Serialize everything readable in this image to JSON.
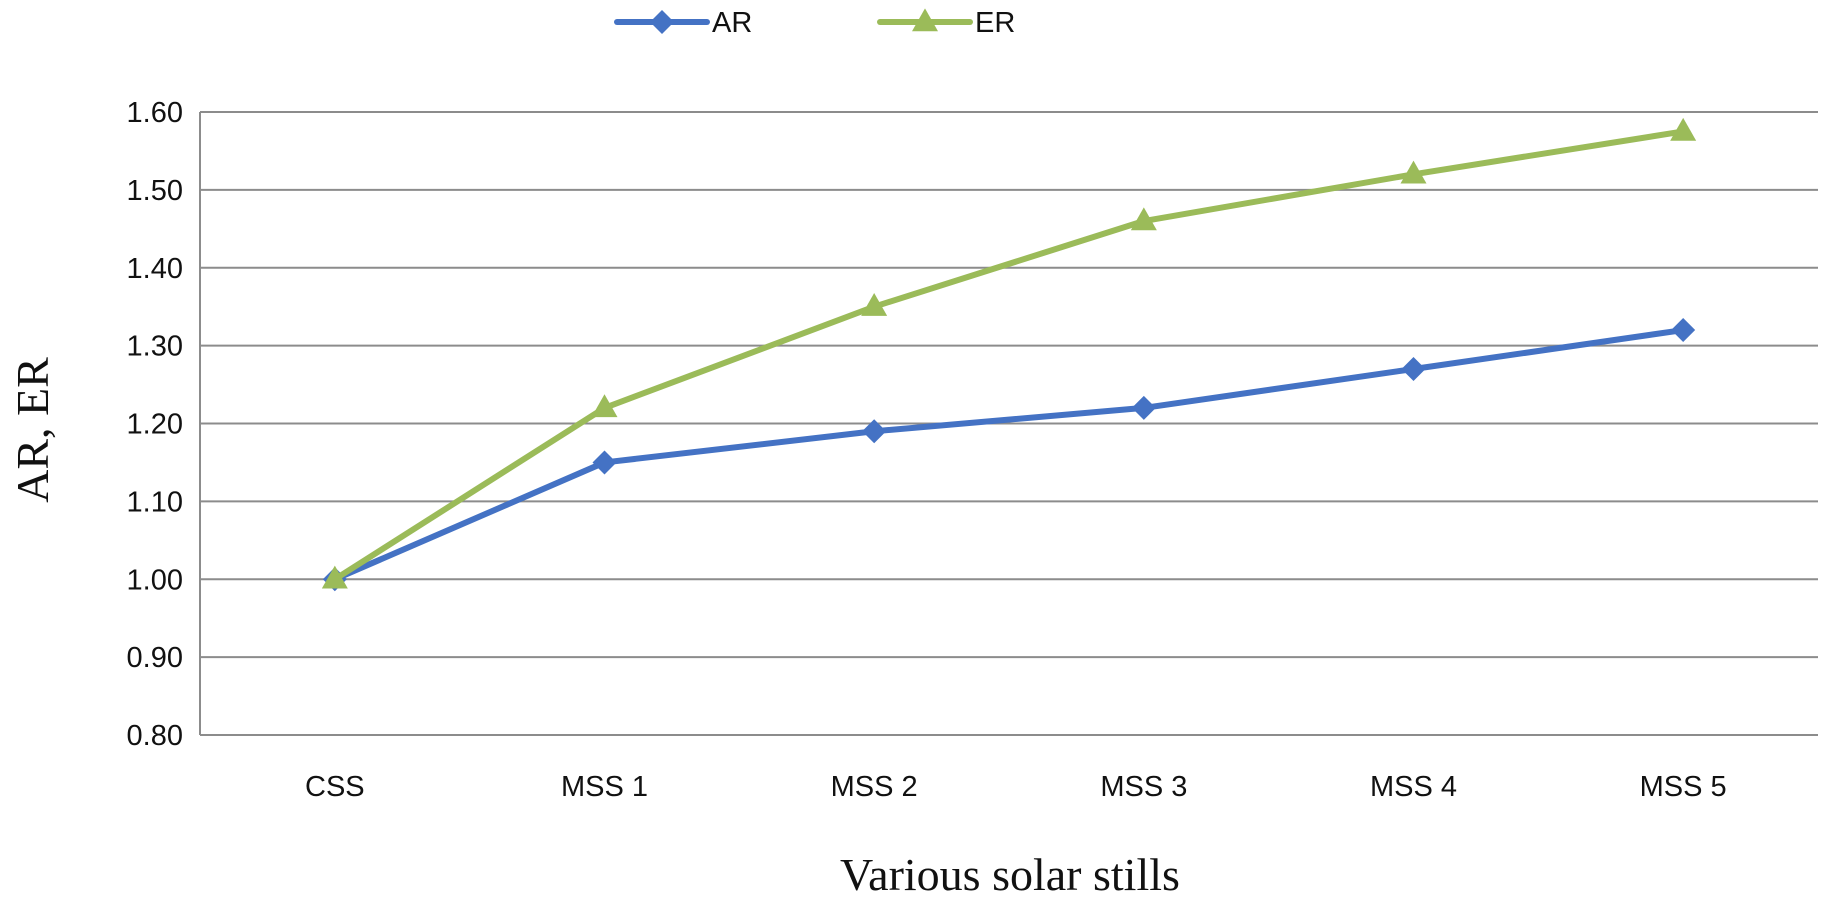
{
  "chart_data": {
    "type": "line",
    "title": "",
    "xlabel": "Various solar stills",
    "ylabel": "AR,  ER",
    "categories": [
      "CSS",
      "MSS 1",
      "MSS 2",
      "MSS 3",
      "MSS 4",
      "MSS 5"
    ],
    "ylim": [
      0.8,
      1.6
    ],
    "yticks": [
      "0.80",
      "0.90",
      "1.00",
      "1.10",
      "1.20",
      "1.30",
      "1.40",
      "1.50",
      "1.60"
    ],
    "ytick_values": [
      0.8,
      0.9,
      1.0,
      1.1,
      1.2,
      1.3,
      1.4,
      1.5,
      1.6
    ],
    "grid": true,
    "legend_position": "top-center",
    "series": [
      {
        "name": "AR",
        "marker": "diamond",
        "color": "#4472C4",
        "values": [
          1.0,
          1.15,
          1.19,
          1.22,
          1.27,
          1.32
        ]
      },
      {
        "name": "ER",
        "marker": "triangle",
        "color": "#9BBB59",
        "values": [
          1.0,
          1.22,
          1.35,
          1.46,
          1.52,
          1.575
        ]
      }
    ]
  }
}
